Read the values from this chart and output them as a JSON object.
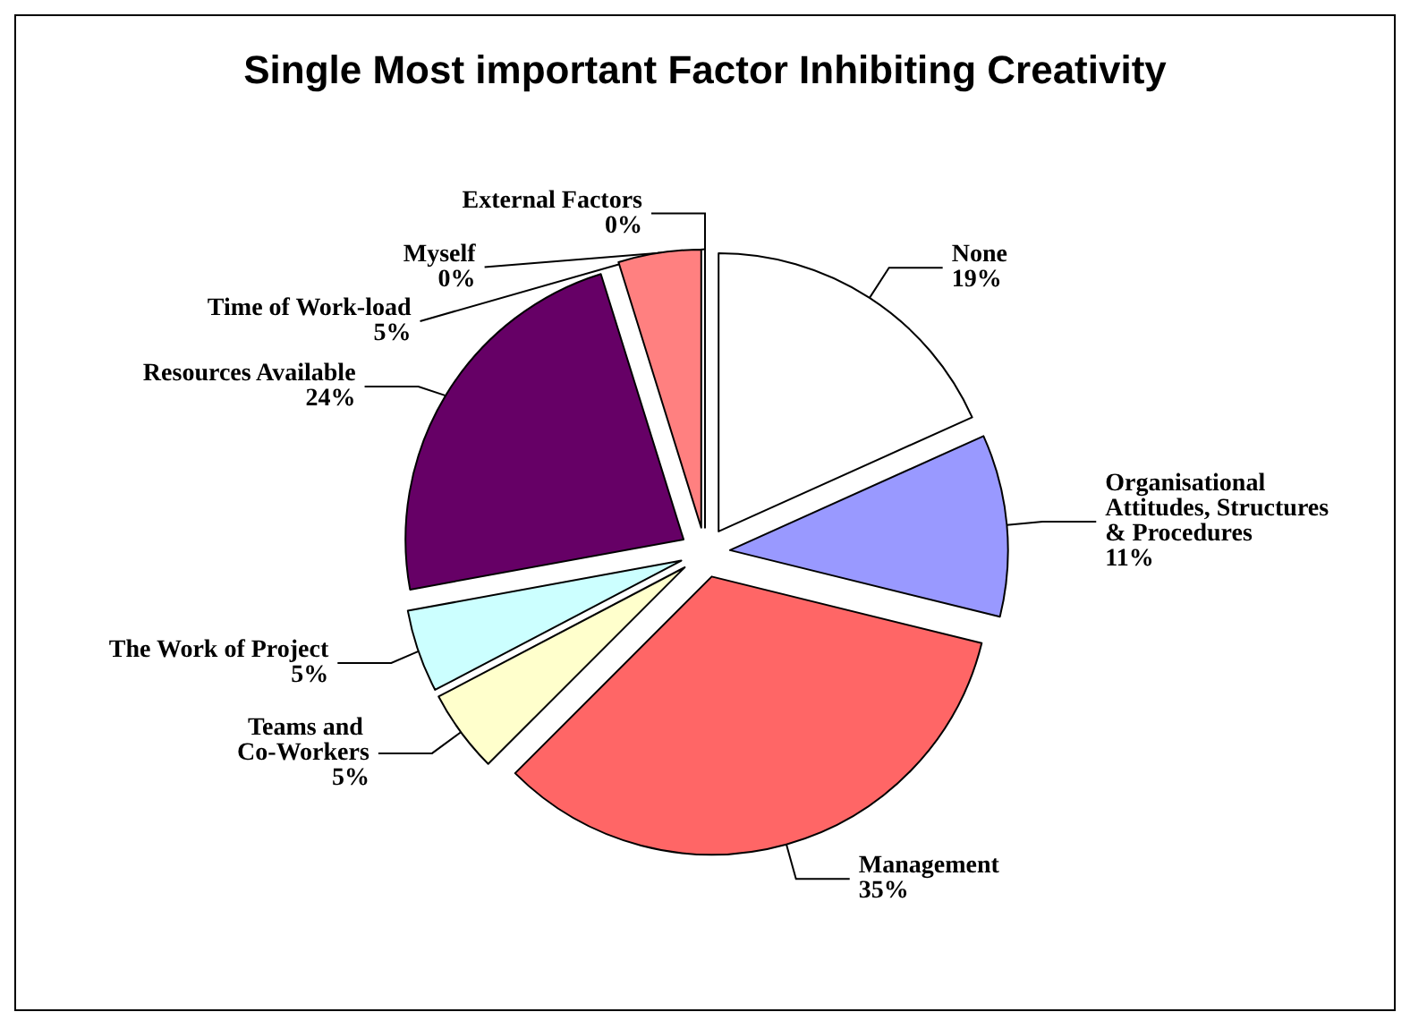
{
  "chart_data": {
    "type": "pie",
    "title": "Single Most important Factor Inhibiting Creativity",
    "categories": [
      "None",
      "Organisational Attitudes, Structures& Procedures",
      "Management",
      "Teams and Co-Workers",
      "The Work of Project",
      "Resources Available",
      "Time of Work-load",
      "External Factors",
      "Myself"
    ],
    "values": [
      19,
      11,
      35,
      5,
      5,
      24,
      5,
      0,
      0
    ],
    "colors": [
      "#ffffff",
      "#9999ff",
      "#ff6666",
      "#ffffcc",
      "#ccffff",
      "#660066",
      "#ff8080",
      "#0066cc",
      "#ff0000"
    ],
    "value_labels": [
      "19%",
      "11%",
      "35%",
      "5%",
      "5%",
      "24%",
      "5%",
      "0%",
      "0%"
    ],
    "legend": false
  }
}
